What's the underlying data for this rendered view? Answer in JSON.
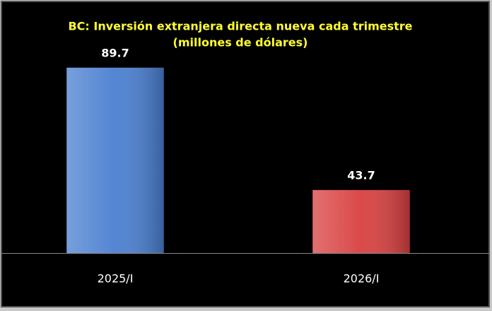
{
  "chart_data": {
    "type": "bar",
    "title": "BC: Inversión extranjera directa nueva cada trimestre",
    "subtitle": "(millones de dólares)",
    "categories": [
      "2025/I",
      "2026/I"
    ],
    "values": [
      89.7,
      43.7
    ],
    "colors": [
      "#4a7fd0",
      "#d84040"
    ],
    "ylim": [
      20,
      100
    ]
  }
}
